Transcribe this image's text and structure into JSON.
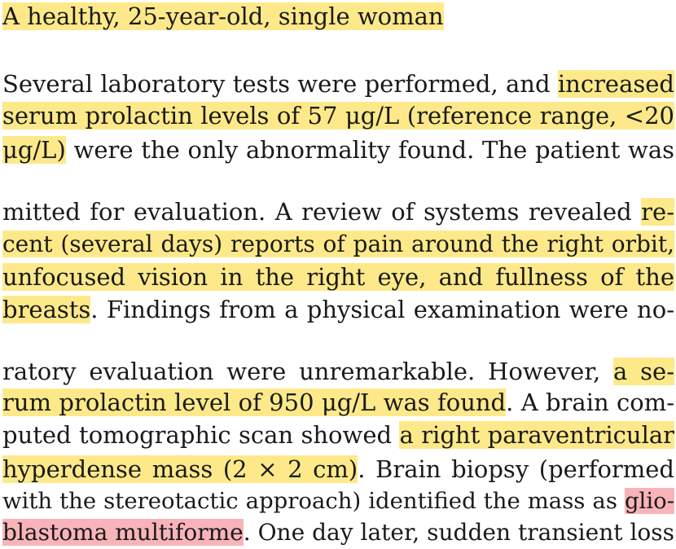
{
  "colors": {
    "highlight_yellow": "#fde98a",
    "highlight_pink": "#f9b4b9",
    "text": "#1a1a1a"
  },
  "lines": [
    {
      "segments": [
        "A healthy, 25-year-old, single woman"
      ]
    },
    {
      "segments": [
        "Several laboratory tests were performed, and ",
        "increased"
      ]
    },
    {
      "segments": [
        "serum prolactin levels of 57 μg/L (reference range, <20"
      ]
    },
    {
      "segments": [
        "μg/L)",
        " were the only abnormality found. The patient was"
      ]
    },
    {
      "segments": [
        "mitted for evaluation. A review of systems revealed ",
        "re-"
      ]
    },
    {
      "segments": [
        "cent (several days) reports of pain around the right orbit,"
      ]
    },
    {
      "segments": [
        "unfocused vision in the right eye, and fullness of the"
      ]
    },
    {
      "segments": [
        "breasts",
        ". Findings from a physical examination were no-"
      ]
    },
    {
      "segments": [
        "ratory evaluation were unremarkable. However, ",
        "a se-"
      ]
    },
    {
      "segments": [
        "rum prolactin level of 950 μg/L was found",
        ". A brain com-"
      ]
    },
    {
      "segments": [
        "puted tomographic scan showed ",
        "a right paraventricular"
      ]
    },
    {
      "segments": [
        "hyperdense mass (2 × 2 cm)",
        ". Brain biopsy (performed"
      ]
    },
    {
      "segments": [
        "with the stereotactic approach) identified the mass as ",
        "glio-"
      ]
    },
    {
      "segments": [
        "blastoma multiforme",
        ". One day later, sudden transient loss"
      ]
    }
  ]
}
